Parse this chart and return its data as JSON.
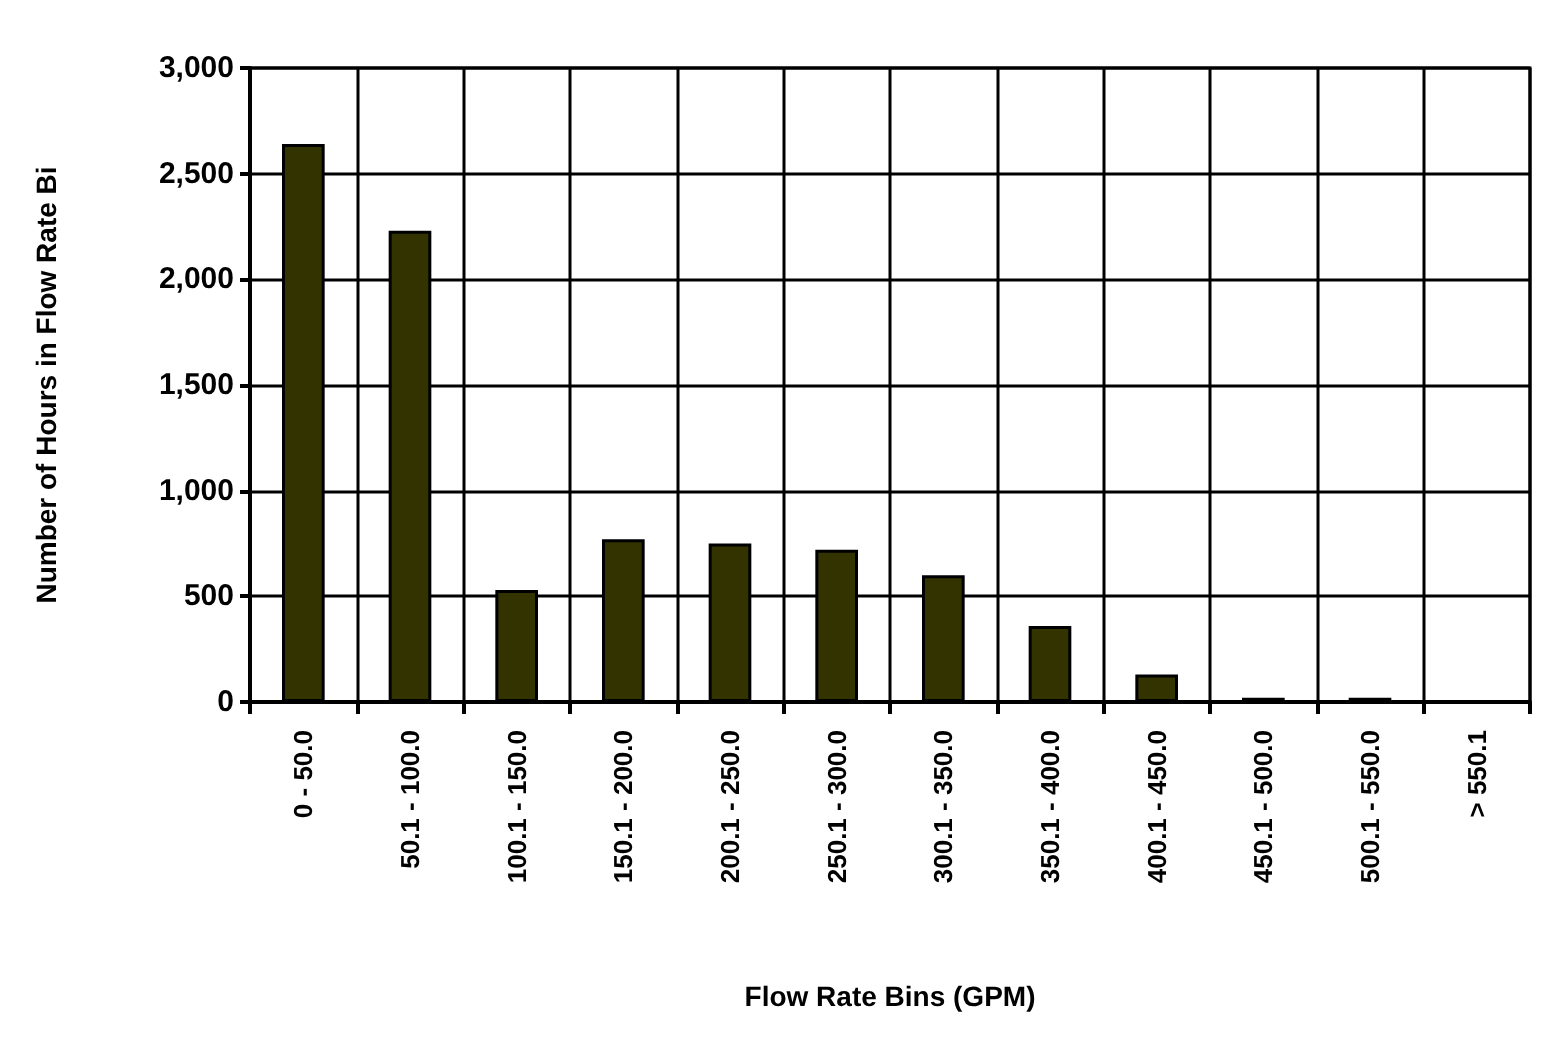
{
  "chart_data": {
    "type": "bar",
    "xlabel": "Flow Rate Bins (GPM)",
    "ylabel": "Number of Hours in Flow Rate Bi",
    "categories": [
      "0 - 50.0",
      "50.1 - 100.0",
      "100.1 - 150.0",
      "150.1 - 200.0",
      "200.1 - 250.0",
      "250.1 - 300.0",
      "300.1 - 350.0",
      "350.1 - 400.0",
      "400.1 - 450.0",
      "450.1 - 500.0",
      "500.1 - 550.0",
      "> 550.1"
    ],
    "values": [
      2640,
      2230,
      530,
      770,
      750,
      720,
      600,
      360,
      130,
      20,
      20,
      0
    ],
    "color": "#333300",
    "ylim": [
      0,
      3000
    ],
    "yticks": [
      {
        "value": 0,
        "label": "0"
      },
      {
        "value": 500,
        "label": "500"
      },
      {
        "value": 1000,
        "label": "1,000"
      },
      {
        "value": 1500,
        "label": "1,500"
      },
      {
        "value": 2000,
        "label": "2,000"
      },
      {
        "value": 2500,
        "label": "2,500"
      },
      {
        "value": 3000,
        "label": "3,000"
      }
    ],
    "grid": true
  }
}
